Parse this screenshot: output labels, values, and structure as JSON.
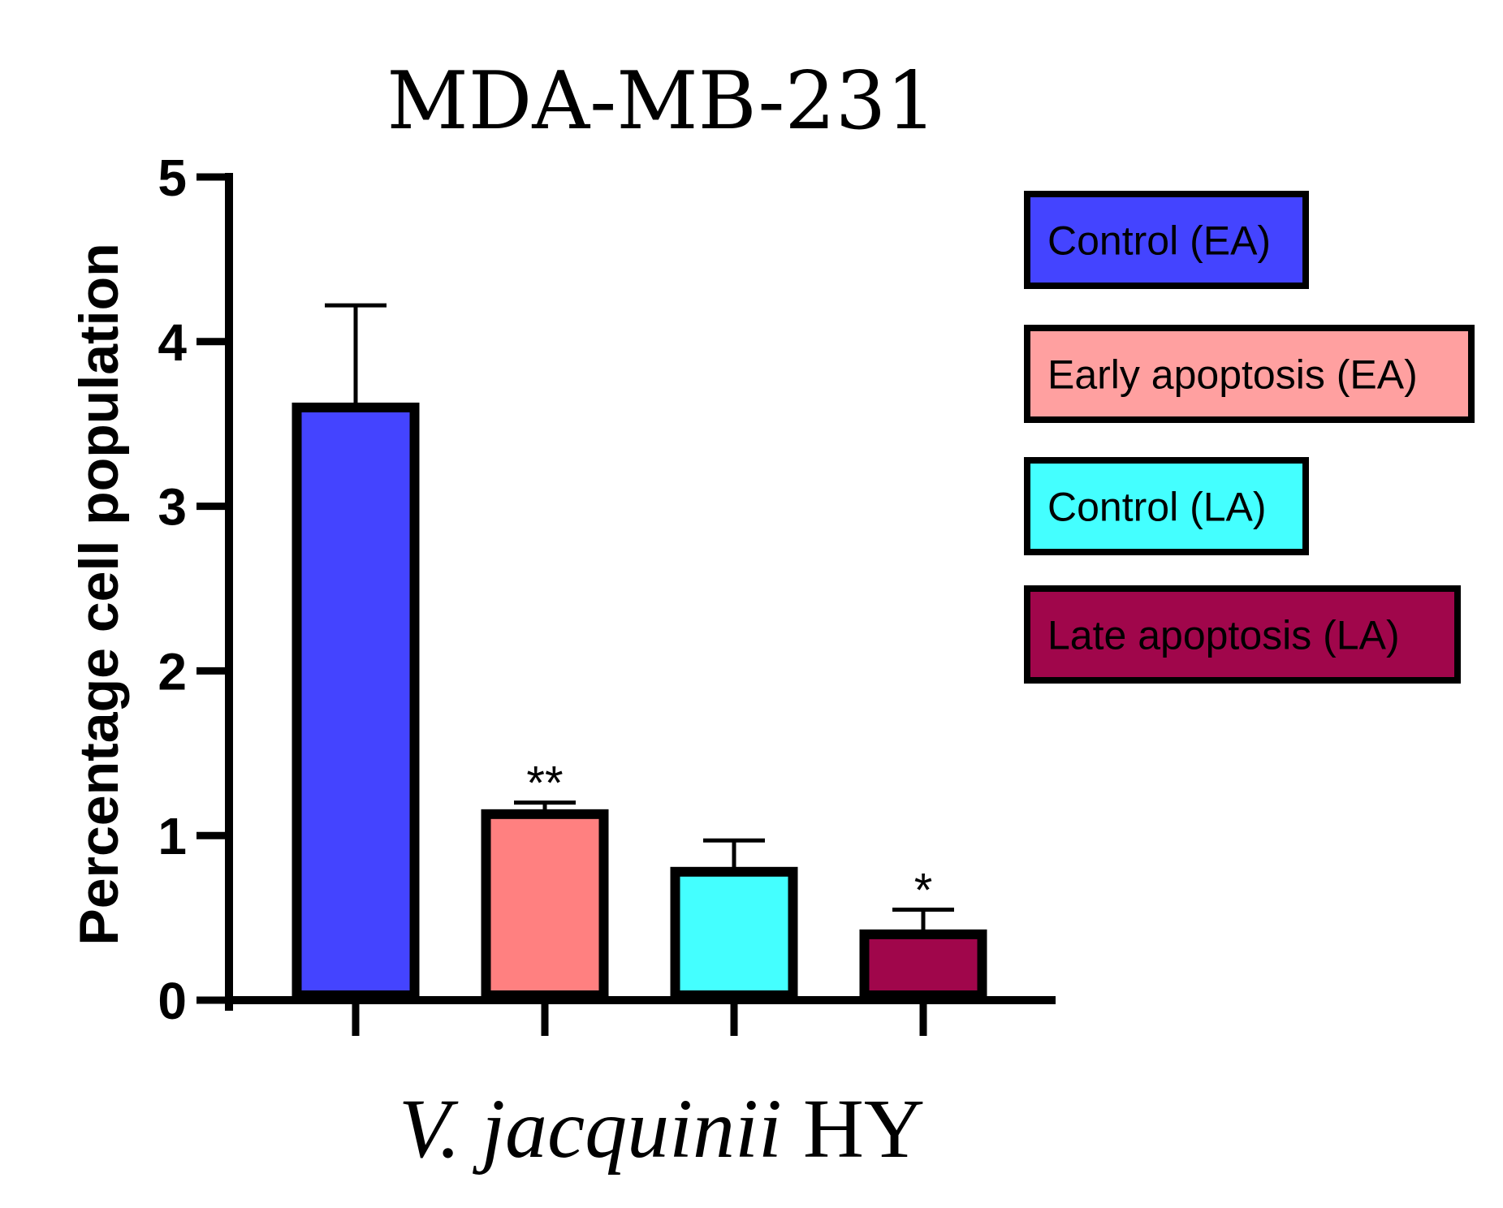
{
  "chart_data": {
    "type": "bar",
    "title": "MDA-MB-231",
    "ylabel": "Percentage cell population",
    "xlabel_italic": "V. jacquinii",
    "xlabel_rest": " HY",
    "ylim": [
      0,
      5
    ],
    "yticks": [
      "0",
      "1",
      "2",
      "3",
      "4",
      "5"
    ],
    "legend_position": "right",
    "series": [
      {
        "name": "Control (EA)",
        "value": 3.6,
        "error": 0.62,
        "color": "#4444ff",
        "significance": ""
      },
      {
        "name": "Early apoptosis (EA)",
        "value": 1.13,
        "error": 0.07,
        "color": "#ff8080",
        "significance": "**"
      },
      {
        "name": "Control (LA)",
        "value": 0.78,
        "error": 0.19,
        "color": "#44ffff",
        "significance": ""
      },
      {
        "name": "Late apoptosis (LA)",
        "value": 0.4,
        "error": 0.15,
        "color": "#a0064b",
        "significance": "*"
      }
    ],
    "legend_colors": [
      "#4444ff",
      "#ffa0a0",
      "#44ffff",
      "#a0064b"
    ]
  }
}
